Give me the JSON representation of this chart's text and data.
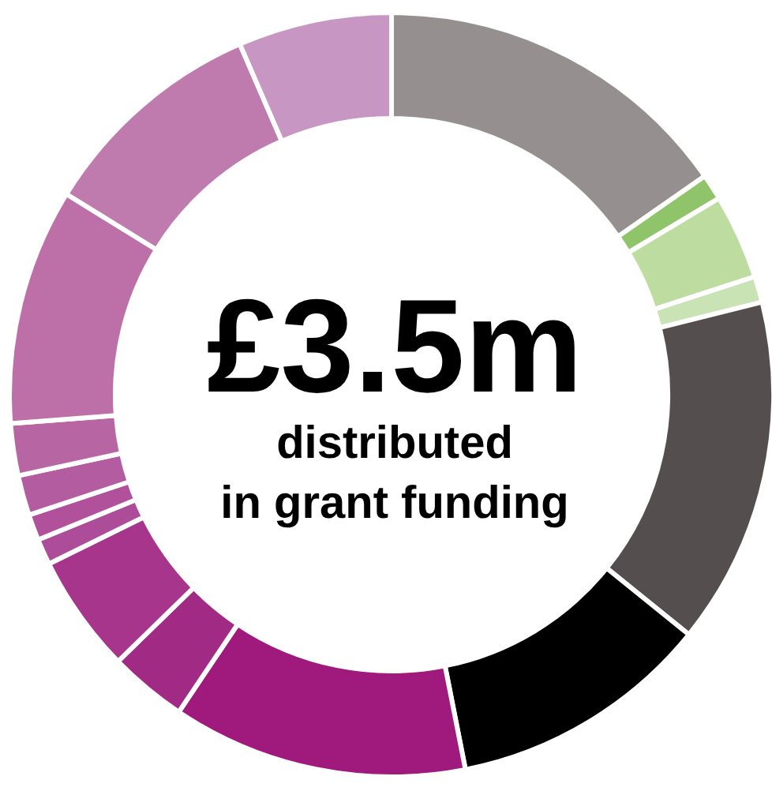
{
  "chart_data": {
    "type": "donut",
    "title": "£3.5m",
    "subtitle": "distributed in grant funding",
    "categories": [
      null,
      null,
      null,
      null,
      null,
      null,
      null,
      null,
      null,
      null,
      null,
      null,
      null,
      null,
      null,
      null
    ],
    "values": [
      15.3,
      1.1,
      3.6,
      1.1,
      14.7,
      11.1,
      12.5,
      3.3,
      5.0,
      1.1,
      1.1,
      1.7,
      2.2,
      10.0,
      9.7,
      6.5
    ],
    "colors": [
      "#958f8f",
      "#8fc46a",
      "#bcdca0",
      "#c9e3b4",
      "#544e4f",
      "#000000",
      "#a0197c",
      "#a02a84",
      "#a8358c",
      "#ad4c98",
      "#b1519b",
      "#b45ca0",
      "#b866a3",
      "#bd70a8",
      "#c07bae",
      "#c896c2"
    ]
  }
}
